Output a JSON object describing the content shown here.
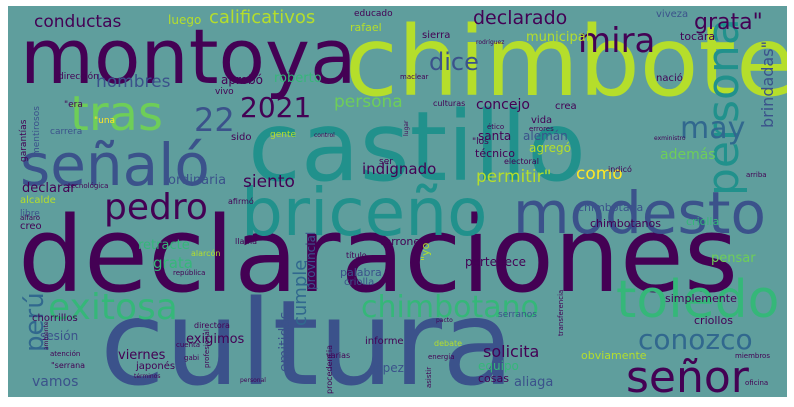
{
  "background": "#5f9e9d",
  "palette": {
    "dark_purple": "#440154",
    "indigo": "#3b528b",
    "slate": "#31688e",
    "teal": "#21918c",
    "green": "#35b779",
    "lime": "#6ece58",
    "yellow_green": "#b5de2b",
    "yellow": "#fde725"
  },
  "words": [
    {
      "text": "declaraciones",
      "color": "#440154"
    },
    {
      "text": "cultura",
      "color": "#3b528b"
    },
    {
      "text": "chimbote",
      "color": "#b5de2b"
    },
    {
      "text": "castillo",
      "color": "#21918c"
    },
    {
      "text": "montoya",
      "color": "#440154"
    },
    {
      "text": "briceño",
      "color": "#21918c"
    },
    {
      "text": "modesto",
      "color": "#3b528b"
    },
    {
      "text": "señaló",
      "color": "#3b528b"
    },
    {
      "text": "tras",
      "color": "#6ece58"
    },
    {
      "text": "toledo",
      "color": "#35b779"
    },
    {
      "text": "señor",
      "color": "#440154"
    },
    {
      "text": "persona",
      "color": "#21918c"
    },
    {
      "text": "pedro",
      "color": "#440154"
    },
    {
      "text": "mira",
      "color": "#440154"
    },
    {
      "text": "exitosa",
      "color": "#35b779"
    },
    {
      "text": "chimbotano",
      "color": "#35b779"
    },
    {
      "text": "conozco",
      "color": "#31688e"
    },
    {
      "text": "2021",
      "color": "#440154"
    },
    {
      "text": "22",
      "color": "#3b528b"
    },
    {
      "text": "may",
      "color": "#31688e"
    },
    {
      "text": "perú",
      "color": "#31688e"
    },
    {
      "text": "grata\"",
      "color": "#440154"
    },
    {
      "text": "dice",
      "color": "#3b528b"
    },
    {
      "text": "declarado",
      "color": "#440154"
    },
    {
      "text": "calificativos",
      "color": "#b5de2b"
    },
    {
      "text": "conductas",
      "color": "#440154"
    },
    {
      "text": "hombres",
      "color": "#3b528b"
    },
    {
      "text": "persona",
      "color": "#6ece58"
    },
    {
      "text": "concejo",
      "color": "#440154"
    },
    {
      "text": "siento",
      "color": "#440154"
    },
    {
      "text": "indignado",
      "color": "#440154"
    },
    {
      "text": "permitir\"",
      "color": "#b5de2b"
    },
    {
      "text": "como",
      "color": "#fde725"
    },
    {
      "text": "brindadas\"",
      "color": "#3b528b"
    },
    {
      "text": "además",
      "color": "#6ece58"
    },
    {
      "text": "pensar",
      "color": "#6ece58"
    },
    {
      "text": "vamos",
      "color": "#3b528b"
    },
    {
      "text": "viernes",
      "color": "#440154"
    },
    {
      "text": "exigimos",
      "color": "#440154"
    },
    {
      "text": "emitidas",
      "color": "#3b528b"
    },
    {
      "text": "cumple",
      "color": "#31688e"
    },
    {
      "text": "provincial",
      "color": "#3b528b"
    },
    {
      "text": "solicita",
      "color": "#440154"
    },
    {
      "text": "aliaga",
      "color": "#3b528b"
    },
    {
      "text": "obviamente",
      "color": "#b5de2b"
    },
    {
      "text": "sesión",
      "color": "#3b528b"
    },
    {
      "text": "grata",
      "color": "#35b779"
    },
    {
      "text": "retracte",
      "color": "#35b779"
    },
    {
      "text": "ordinaria",
      "color": "#3b528b"
    },
    {
      "text": "declarar",
      "color": "#440154"
    },
    {
      "text": "santa",
      "color": "#440154"
    },
    {
      "text": "alemán",
      "color": "#3b528b"
    },
    {
      "text": "vida",
      "color": "#440154"
    },
    {
      "text": "técnico",
      "color": "#440154"
    },
    {
      "text": "agregó",
      "color": "#b5de2b"
    },
    {
      "text": "luego",
      "color": "#b5de2b"
    },
    {
      "text": "sierra",
      "color": "#440154"
    },
    {
      "text": "tocara",
      "color": "#440154"
    },
    {
      "text": "rafael",
      "color": "#b5de2b"
    },
    {
      "text": "municipal",
      "color": "#b5de2b"
    },
    {
      "text": "roberto",
      "color": "#35b779"
    },
    {
      "text": "aprobó",
      "color": "#440154"
    },
    {
      "text": "chimbotana",
      "color": "#3b528b"
    },
    {
      "text": "pertenece",
      "color": "#440154"
    },
    {
      "text": "terrones",
      "color": "#440154"
    },
    {
      "text": "criollos",
      "color": "#440154"
    },
    {
      "text": "criolla",
      "color": "#35b779"
    },
    {
      "text": "chimbotanos",
      "color": "#440154"
    },
    {
      "text": "simplemente",
      "color": "#440154"
    },
    {
      "text": "equipo",
      "color": "#35b779"
    },
    {
      "text": "informe",
      "color": "#440154"
    },
    {
      "text": "cosas",
      "color": "#440154"
    },
    {
      "text": "lópez",
      "color": "#3b528b"
    },
    {
      "text": "japonés",
      "color": "#440154"
    },
    {
      "text": "chorrillos",
      "color": "#440154"
    },
    {
      "text": "palabra",
      "color": "#3b528b"
    },
    {
      "text": "\"yo",
      "color": "#b5de2b"
    },
    {
      "text": "criolla",
      "color": "#3b528b"
    },
    {
      "text": "sido",
      "color": "#440154"
    },
    {
      "text": "crea",
      "color": "#440154"
    },
    {
      "text": "viveza",
      "color": "#3b528b"
    },
    {
      "text": "nació",
      "color": "#440154"
    },
    {
      "text": "creo",
      "color": "#440154"
    },
    {
      "text": "alcalde",
      "color": "#b5de2b"
    },
    {
      "text": "educado",
      "color": "#440154"
    },
    {
      "text": "\"una",
      "color": "#fde725"
    },
    {
      "text": "\"era",
      "color": "#440154"
    },
    {
      "text": "carrera",
      "color": "#3b528b"
    },
    {
      "text": "\"los",
      "color": "#440154"
    },
    {
      "text": "electoral",
      "color": "#440154"
    },
    {
      "text": "indicó",
      "color": "#440154"
    },
    {
      "text": "serranos",
      "color": "#3b528b"
    },
    {
      "text": "gente",
      "color": "#b5de2b"
    },
    {
      "text": "dirección",
      "color": "#440154"
    },
    {
      "text": "vivo",
      "color": "#440154"
    },
    {
      "text": "culturas",
      "color": "#440154"
    },
    {
      "text": "ser",
      "color": "#440154"
    },
    {
      "text": "garantías",
      "color": "#440154"
    },
    {
      "text": "mentirosos",
      "color": "#3b528b"
    },
    {
      "text": "libre",
      "color": "#3b528b"
    },
    {
      "text": "cuenta",
      "color": "#440154"
    },
    {
      "text": "gabi",
      "color": "#440154"
    },
    {
      "text": "debate",
      "color": "#b5de2b"
    },
    {
      "text": "varias",
      "color": "#440154"
    },
    {
      "text": "directora",
      "color": "#440154"
    },
    {
      "text": "afirmó",
      "color": "#440154"
    },
    {
      "text": "llama",
      "color": "#440154"
    },
    {
      "text": "república",
      "color": "#440154"
    },
    {
      "text": "título",
      "color": "#440154"
    },
    {
      "text": "errores",
      "color": "#440154"
    },
    {
      "text": "alarcón",
      "color": "#b5de2b"
    },
    {
      "text": "maclear",
      "color": "#440154"
    },
    {
      "text": "asistir",
      "color": "#440154"
    },
    {
      "text": "procedencia",
      "color": "#440154"
    },
    {
      "text": "rodríguez",
      "color": "#440154"
    },
    {
      "text": "tecnológica",
      "color": "#440154"
    },
    {
      "text": "energía",
      "color": "#440154"
    },
    {
      "text": "\"serrana",
      "color": "#440154"
    },
    {
      "text": "personal",
      "color": "#440154"
    },
    {
      "text": "transferencia",
      "color": "#440154"
    },
    {
      "text": "control",
      "color": "#440154"
    },
    {
      "text": "atención",
      "color": "#440154"
    },
    {
      "text": "profesional",
      "color": "#440154"
    },
    {
      "text": "lugar",
      "color": "#440154"
    },
    {
      "text": "ético",
      "color": "#440154"
    },
    {
      "text": "alfaro",
      "color": "#440154"
    },
    {
      "text": "exministro",
      "color": "#440154"
    },
    {
      "text": "pacto",
      "color": "#440154"
    },
    {
      "text": "oficina",
      "color": "#440154"
    },
    {
      "text": "miembros",
      "color": "#440154"
    },
    {
      "text": "términos",
      "color": "#440154"
    },
    {
      "text": "ambiente",
      "color": "#440154"
    },
    {
      "text": "arriba",
      "color": "#440154"
    }
  ]
}
